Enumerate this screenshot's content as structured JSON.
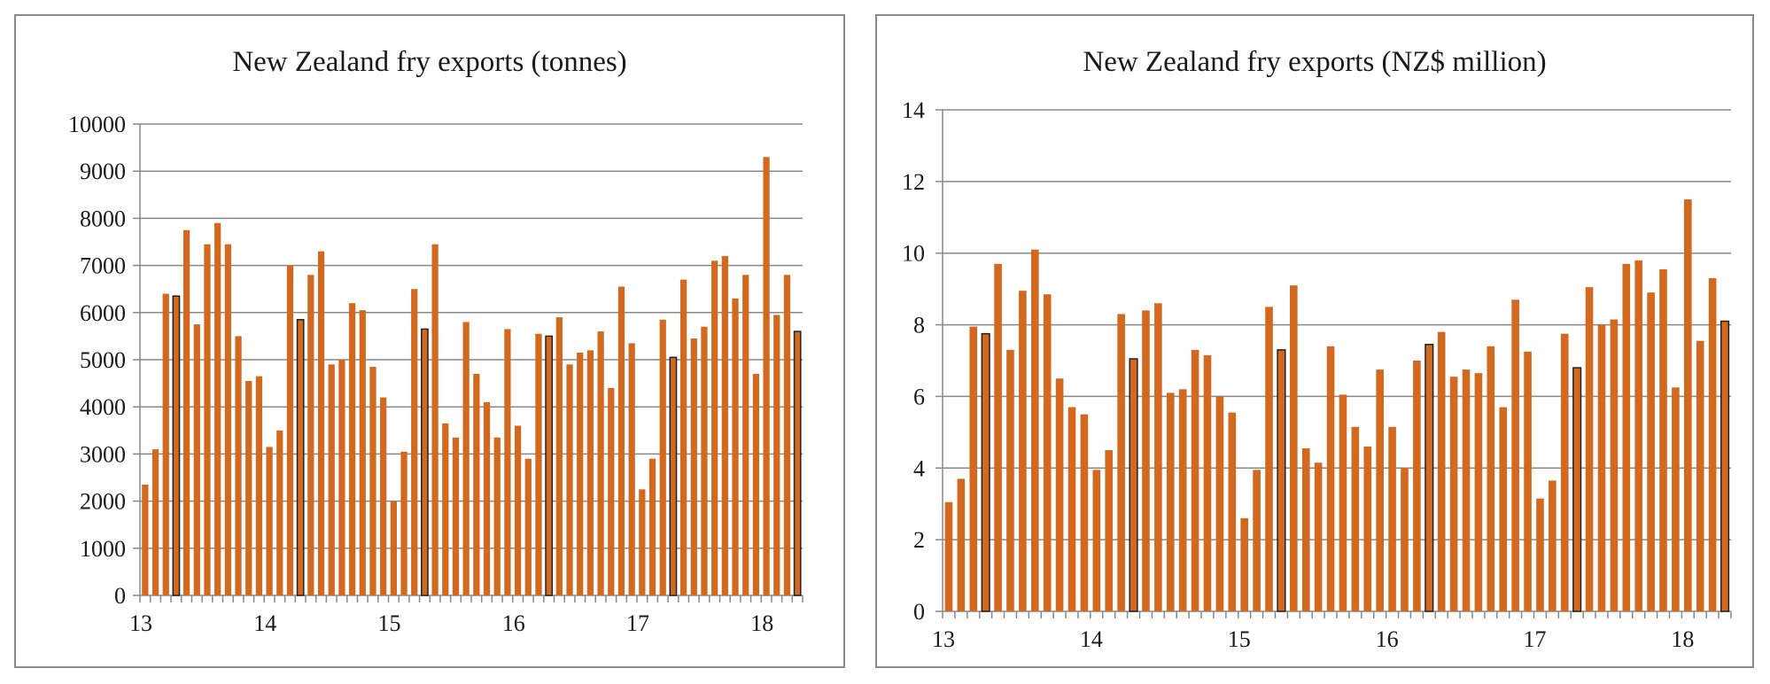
{
  "colors": {
    "bar": "#D2691E",
    "grid": "#888888",
    "highlight_stroke": "#222222"
  },
  "chart_data": [
    {
      "type": "bar",
      "title": "New Zealand  fry exports (tonnes)",
      "xlabel": "",
      "ylabel": "",
      "ylim": [
        0,
        10000
      ],
      "yticks": [
        "0",
        "1000",
        "2000",
        "3000",
        "4000",
        "5000",
        "6000",
        "7000",
        "8000",
        "9000",
        "10000"
      ],
      "xtick_labels": [
        "13",
        "14",
        "15",
        "16",
        "17",
        "18"
      ],
      "grid": true,
      "values": [
        2350,
        3100,
        6400,
        6350,
        7750,
        5750,
        7450,
        7900,
        7450,
        5500,
        4550,
        4650,
        3150,
        3500,
        7000,
        5850,
        6800,
        7300,
        4900,
        5000,
        6200,
        6050,
        4850,
        4200,
        2000,
        3050,
        6500,
        5650,
        7450,
        3650,
        3350,
        5800,
        4700,
        4100,
        3350,
        5650,
        3600,
        2900,
        5550,
        5500,
        5900,
        4900,
        5150,
        5200,
        5600,
        4400,
        6550,
        5350,
        2250,
        2900,
        5850,
        5050,
        6700,
        5450,
        5700,
        7100,
        7200,
        6300,
        6800,
        4700,
        9300,
        5950,
        6800,
        5600
      ],
      "highlighted_indices": [
        3,
        15,
        27,
        39,
        51,
        63
      ]
    },
    {
      "type": "bar",
      "title": "New Zealand fry exports (NZ$ million)",
      "xlabel": "",
      "ylabel": "",
      "ylim": [
        0,
        14
      ],
      "yticks": [
        "0",
        "2",
        "4",
        "6",
        "8",
        "10",
        "12",
        "14"
      ],
      "xtick_labels": [
        "13",
        "14",
        "15",
        "16",
        "17",
        "18"
      ],
      "grid": true,
      "values": [
        3.05,
        3.7,
        7.95,
        7.75,
        9.7,
        7.3,
        8.95,
        10.1,
        8.85,
        6.5,
        5.7,
        5.5,
        3.95,
        4.5,
        8.3,
        7.05,
        8.4,
        8.6,
        6.1,
        6.2,
        7.3,
        7.15,
        6.0,
        5.55,
        2.6,
        3.95,
        8.5,
        7.3,
        9.1,
        4.55,
        4.15,
        7.4,
        6.05,
        5.15,
        4.6,
        6.75,
        5.15,
        4.0,
        7.0,
        7.45,
        7.8,
        6.55,
        6.75,
        6.65,
        7.4,
        5.7,
        8.7,
        7.25,
        3.15,
        3.65,
        7.75,
        6.8,
        9.05,
        8.0,
        8.15,
        9.7,
        9.8,
        8.9,
        9.55,
        6.25,
        11.5,
        7.55,
        9.3,
        8.1
      ],
      "highlighted_indices": [
        3,
        15,
        27,
        39,
        51,
        63
      ]
    }
  ]
}
